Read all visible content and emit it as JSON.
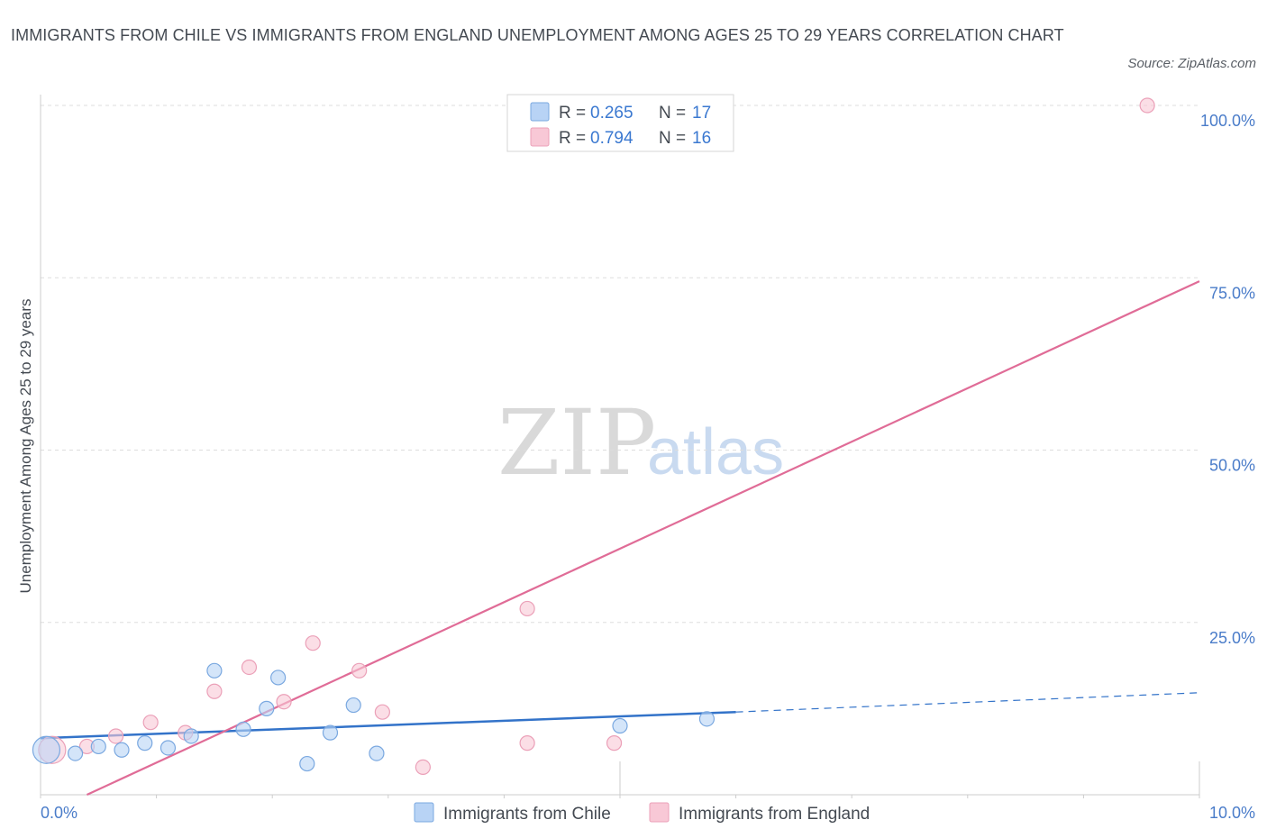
{
  "header": {
    "title": "IMMIGRANTS FROM CHILE VS IMMIGRANTS FROM ENGLAND UNEMPLOYMENT AMONG AGES 25 TO 29 YEARS CORRELATION CHART",
    "source": "Source: ZipAtlas.com"
  },
  "watermark": {
    "zip": "ZIP",
    "atlas": "atlas"
  },
  "colors": {
    "chile_fill": "#b8d3f5",
    "chile_stroke": "#7aa8e0",
    "chile_line": "#3373c9",
    "england_fill": "#f8c8d6",
    "england_stroke": "#eba0b8",
    "england_line": "#e06c97",
    "grid": "#dddddd",
    "axis": "#cccccc"
  },
  "legend": {
    "r_label": "R = ",
    "n_label": "N = ",
    "chile": {
      "r": "0.265",
      "n": "17"
    },
    "england": {
      "r": "0.794",
      "n": "16"
    }
  },
  "bottom_legend": {
    "chile": "Immigrants from Chile",
    "england": "Immigrants from England"
  },
  "chart_data": {
    "type": "scatter",
    "title": "IMMIGRANTS FROM CHILE VS IMMIGRANTS FROM ENGLAND UNEMPLOYMENT AMONG AGES 25 TO 29 YEARS CORRELATION CHART",
    "xlabel": "",
    "ylabel": "Unemployment Among Ages 25 to 29 years",
    "xlim": [
      0,
      10
    ],
    "ylim": [
      0,
      100
    ],
    "x_tick_labels": [
      "0.0%",
      "10.0%"
    ],
    "y_ticks": [
      {
        "value": 25,
        "label": "25.0%"
      },
      {
        "value": 50,
        "label": "50.0%"
      },
      {
        "value": 75,
        "label": "75.0%"
      },
      {
        "value": 100,
        "label": "100.0%"
      }
    ],
    "grid": true,
    "series": [
      {
        "name": "Immigrants from Chile",
        "r": 0.265,
        "n": 17,
        "points": [
          {
            "x": 0.05,
            "y": 6.5,
            "big": true
          },
          {
            "x": 0.3,
            "y": 6.0
          },
          {
            "x": 0.5,
            "y": 7.0
          },
          {
            "x": 0.7,
            "y": 6.5
          },
          {
            "x": 0.9,
            "y": 7.5
          },
          {
            "x": 1.1,
            "y": 6.8
          },
          {
            "x": 1.3,
            "y": 8.5
          },
          {
            "x": 1.5,
            "y": 18.0
          },
          {
            "x": 1.75,
            "y": 9.5
          },
          {
            "x": 1.95,
            "y": 12.5
          },
          {
            "x": 2.05,
            "y": 17.0
          },
          {
            "x": 2.3,
            "y": 4.5
          },
          {
            "x": 2.5,
            "y": 9.0
          },
          {
            "x": 2.7,
            "y": 13.0
          },
          {
            "x": 2.9,
            "y": 6.0
          },
          {
            "x": 5.0,
            "y": 10.0
          },
          {
            "x": 5.75,
            "y": 11.0
          }
        ],
        "trend": {
          "x0": 0.0,
          "y0": 8.2,
          "x1": 6.0,
          "y1": 12.0,
          "dash_to_x": 10.0,
          "dash_to_y": 14.8
        }
      },
      {
        "name": "Immigrants from England",
        "r": 0.794,
        "n": 16,
        "points": [
          {
            "x": 0.1,
            "y": 6.5,
            "big": true
          },
          {
            "x": 0.4,
            "y": 7.0
          },
          {
            "x": 0.65,
            "y": 8.5
          },
          {
            "x": 0.95,
            "y": 10.5
          },
          {
            "x": 1.25,
            "y": 9.0
          },
          {
            "x": 1.5,
            "y": 15.0
          },
          {
            "x": 1.8,
            "y": 18.5
          },
          {
            "x": 2.1,
            "y": 13.5
          },
          {
            "x": 2.35,
            "y": 22.0
          },
          {
            "x": 2.75,
            "y": 18.0
          },
          {
            "x": 2.95,
            "y": 12.0
          },
          {
            "x": 3.3,
            "y": 4.0
          },
          {
            "x": 4.2,
            "y": 7.5
          },
          {
            "x": 4.2,
            "y": 27.0
          },
          {
            "x": 4.95,
            "y": 7.5
          },
          {
            "x": 9.55,
            "y": 100.0
          }
        ],
        "trend": {
          "x0": 0.4,
          "y0": 0.0,
          "x1": 10.0,
          "y1": 74.5
        }
      }
    ]
  }
}
